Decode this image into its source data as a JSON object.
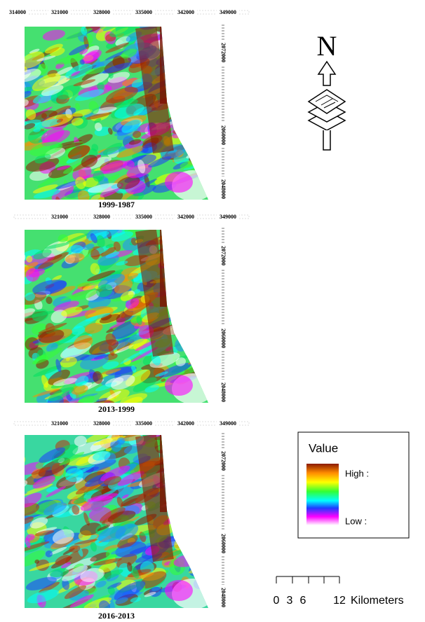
{
  "panels": [
    {
      "title": "1999-1987",
      "x_labels": [
        "314000",
        "321000",
        "328000",
        "335000",
        "342000",
        "349000"
      ],
      "y_labels": [
        "2072000",
        "2060000",
        "2048000"
      ]
    },
    {
      "title": "2013-1999",
      "x_labels": [
        "321000",
        "328000",
        "335000",
        "342000",
        "349000"
      ],
      "y_labels": [
        "2072000",
        "2060000",
        "2048000"
      ]
    },
    {
      "title": "2016-2013",
      "x_labels": [
        "321000",
        "328000",
        "335000",
        "342000",
        "349000"
      ],
      "y_labels": [
        "2072000",
        "2060000",
        "2048000"
      ]
    }
  ],
  "north": "N",
  "legend": {
    "title": "Value",
    "high": "High :",
    "low": "Low :"
  },
  "scale_bar": {
    "labels": [
      "0",
      "3",
      "6",
      "12"
    ],
    "unit": "Kilometers"
  }
}
